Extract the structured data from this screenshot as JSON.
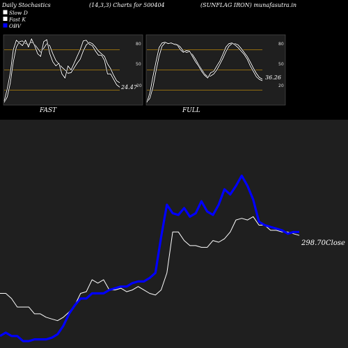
{
  "header": {
    "title_left": "Daily Stochastics",
    "title_center": "(14,3,3) Charts for 500404",
    "title_right": "(SUNFLAG IRON) munafasutra.in"
  },
  "legend": [
    {
      "label": "Slow  D",
      "color": "#ffffff"
    },
    {
      "label": "Fast K",
      "color": "#ffffff"
    },
    {
      "label": "OBV",
      "color": "#0000ff"
    }
  ],
  "colors": {
    "background": "#000000",
    "panel": "#1f1f1f",
    "level_line": "#b8860b",
    "line": "#ffffff",
    "obv": "#0000ff"
  },
  "chart_data": [
    {
      "type": "line",
      "caption": "FAST",
      "ylim": [
        0,
        100
      ],
      "levels": [
        20,
        50,
        80
      ],
      "tick_labels": [
        "80",
        "50",
        "20"
      ],
      "last_value_label": "24.47",
      "series": [
        {
          "name": "Slow  D",
          "values": [
            2,
            10,
            30,
            62,
            84,
            92,
            93,
            89,
            88,
            91,
            88,
            82,
            76,
            82,
            89,
            86,
            74,
            64,
            59,
            54,
            50,
            45,
            46,
            53,
            60,
            66,
            78,
            87,
            91,
            89,
            84,
            78,
            74,
            70,
            59,
            52,
            42,
            34,
            31
          ]
        },
        {
          "name": "Fast K",
          "values": [
            4,
            22,
            45,
            80,
            94,
            90,
            86,
            94,
            84,
            96,
            86,
            74,
            70,
            92,
            95,
            74,
            62,
            56,
            60,
            44,
            38,
            56,
            50,
            60,
            70,
            80,
            93,
            94,
            88,
            86,
            78,
            72,
            72,
            64,
            44,
            44,
            36,
            28,
            24.47
          ]
        }
      ]
    },
    {
      "type": "line",
      "caption": "FULL",
      "ylim": [
        0,
        100
      ],
      "levels": [
        20,
        50,
        80
      ],
      "tick_labels": [
        "80",
        "50",
        "20"
      ],
      "last_value_label": "36.26",
      "series": [
        {
          "name": "Slow  D",
          "values": [
            2,
            8,
            24,
            48,
            70,
            85,
            90,
            90,
            89,
            89,
            88,
            84,
            78,
            76,
            77,
            73,
            66,
            58,
            51,
            44,
            40,
            41,
            44,
            50,
            58,
            67,
            77,
            85,
            89,
            89,
            87,
            82,
            76,
            70,
            62,
            53,
            45,
            39,
            36.26
          ]
        },
        {
          "name": "Fast K",
          "values": [
            2,
            16,
            40,
            62,
            83,
            90,
            91,
            89,
            90,
            88,
            87,
            80,
            76,
            79,
            78,
            70,
            62,
            56,
            48,
            42,
            38,
            46,
            48,
            56,
            63,
            73,
            84,
            89,
            90,
            87,
            83,
            78,
            73,
            66,
            56,
            48,
            40,
            36,
            34
          ]
        }
      ]
    },
    {
      "type": "line",
      "ylim": [
        0,
        100
      ],
      "last_value_label": "298.70",
      "last_value_suffix": "Close",
      "series": [
        {
          "name": "Close",
          "values": [
            30,
            30,
            27,
            22,
            22,
            22,
            18,
            18,
            16,
            15,
            14,
            16,
            19,
            23,
            30,
            31,
            38,
            36,
            38,
            32,
            32,
            33,
            31,
            32,
            34,
            32,
            30,
            29,
            32,
            42,
            66,
            66,
            61,
            58,
            58,
            57,
            57,
            61,
            60,
            62,
            66,
            73,
            74,
            73,
            75,
            70,
            70,
            67,
            67,
            66,
            66,
            65,
            64
          ]
        },
        {
          "name": "OBV",
          "values": [
            5,
            7,
            5,
            5,
            2,
            2,
            3,
            3,
            3,
            4,
            6,
            11,
            18,
            23,
            27,
            27,
            30,
            30,
            30,
            32,
            33,
            34,
            34,
            36,
            37,
            37,
            39,
            42,
            63,
            82,
            77,
            76,
            80,
            75,
            77,
            84,
            78,
            76,
            82,
            91,
            88,
            93,
            99,
            93,
            85,
            72,
            70,
            69,
            68,
            67,
            65,
            66,
            66
          ]
        }
      ]
    }
  ]
}
